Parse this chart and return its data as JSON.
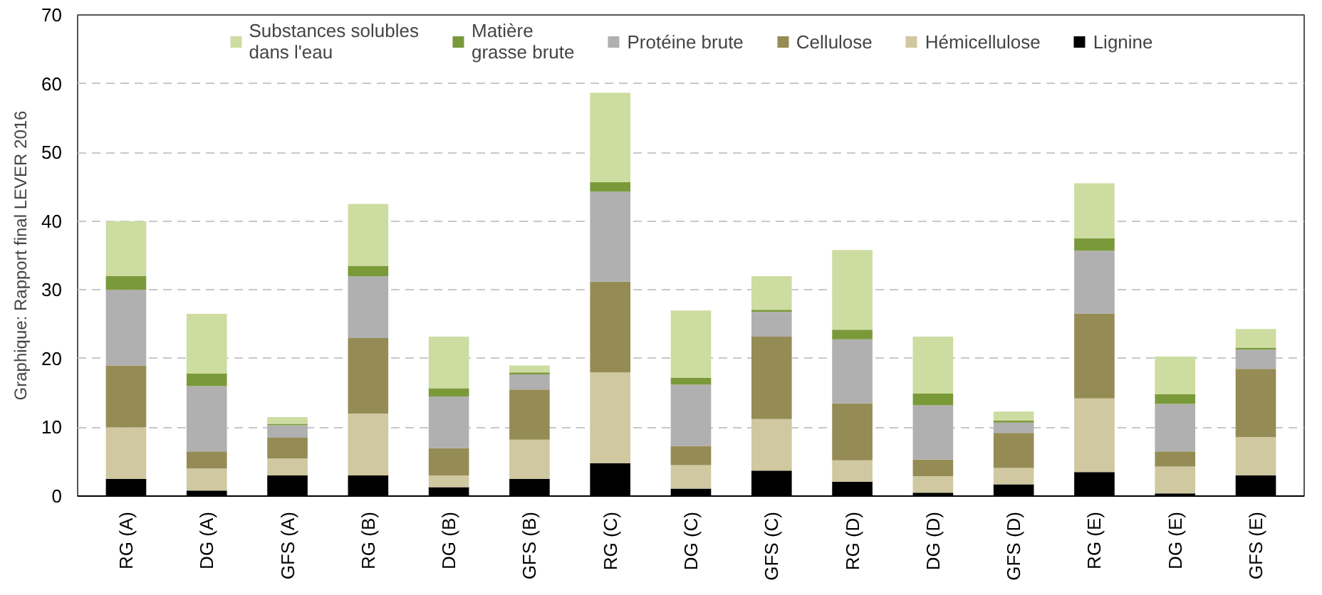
{
  "chart_data": {
    "type": "bar",
    "stacked": true,
    "categories": [
      "RG (A)",
      "DG (A)",
      "GFS (A)",
      "RG (B)",
      "DG (B)",
      "GFS (B)",
      "RG (C)",
      "DG (C)",
      "GFS (C)",
      "RG (D)",
      "DG (D)",
      "GFS (D)",
      "RG (E)",
      "DG (E)",
      "GFS (E)"
    ],
    "series": [
      {
        "name": "Lignine",
        "color": "#000000",
        "values": [
          2.5,
          0.8,
          3,
          3,
          1.3,
          2.5,
          4.8,
          1.1,
          3.7,
          2.1,
          0.5,
          1.7,
          3.5,
          0.4,
          3
        ]
      },
      {
        "name": "Hémicellulose",
        "color": "#cfc8a0",
        "values": [
          7.5,
          3.2,
          2.5,
          9,
          1.7,
          5.7,
          13.2,
          3.4,
          7.5,
          3.1,
          2.4,
          2.4,
          10.7,
          3.9,
          5.6
        ]
      },
      {
        "name": "Cellulose",
        "color": "#958c55",
        "values": [
          9,
          2.5,
          3,
          11,
          4,
          7.3,
          13.2,
          2.8,
          12,
          8.3,
          2.4,
          5.1,
          12.3,
          2.2,
          9.9
        ]
      },
      {
        "name": "Protéine brute",
        "color": "#b0b0b0",
        "values": [
          11,
          9.5,
          1.8,
          9,
          7.5,
          2.2,
          13.1,
          8.9,
          3.6,
          9.3,
          7.9,
          1.5,
          9.2,
          6.9,
          2.8
        ]
      },
      {
        "name": "Matière\ngrasse brute",
        "color": "#7a9a3a",
        "values": [
          2,
          1.8,
          0.2,
          1.5,
          1.2,
          0.3,
          1.4,
          1,
          0.3,
          1.4,
          1.7,
          0.3,
          1.8,
          1.4,
          0.3
        ]
      },
      {
        "name": "Substances solubles\ndans l'eau",
        "color": "#cddca0",
        "values": [
          8,
          8.7,
          1,
          9,
          7.5,
          1,
          13,
          9.8,
          4.9,
          11.6,
          8.3,
          1.3,
          8,
          5.5,
          2.7
        ]
      }
    ],
    "ylim": [
      0,
      70
    ],
    "yticks": [
      0,
      10,
      20,
      30,
      40,
      50,
      60,
      70
    ],
    "grid": "y",
    "legend": "top",
    "annotations": [
      "Graphique: Rapport final LEVER 2016"
    ]
  }
}
